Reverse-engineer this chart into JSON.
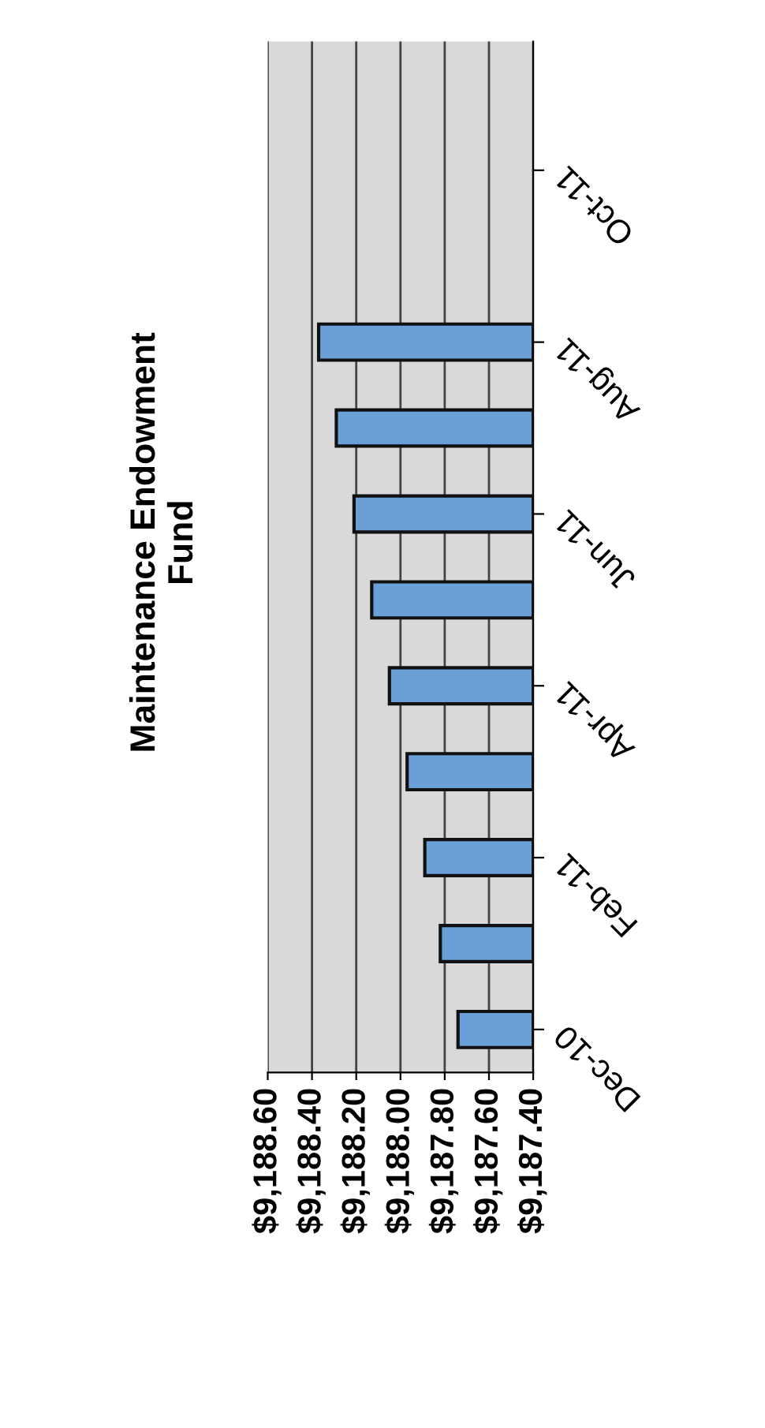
{
  "chart_data": {
    "type": "bar",
    "orientation": "horizontal",
    "title": "Maintenance Endowment\nFund",
    "categories": [
      null,
      "Oct-11",
      null,
      "Aug-11",
      null,
      "Jun-11",
      null,
      "Apr-11",
      null,
      "Feb-11",
      null,
      "Dec-10"
    ],
    "values": [
      null,
      null,
      null,
      9188.37,
      9188.29,
      9188.21,
      9188.13,
      9188.05,
      9187.97,
      9187.89,
      9187.82,
      9187.74
    ],
    "color": "#6a9fd8",
    "xlim": [
      9188.6,
      9187.4
    ],
    "xticks": [
      {
        "value": 9188.6,
        "label": "$9,188.60"
      },
      {
        "value": 9188.4,
        "label": "$9,188.40"
      },
      {
        "value": 9188.2,
        "label": "$9,188.20"
      },
      {
        "value": 9188.0,
        "label": "$9,188.00"
      },
      {
        "value": 9187.8,
        "label": "$9,187.80"
      },
      {
        "value": 9187.6,
        "label": "$9,187.60"
      },
      {
        "value": 9187.4,
        "label": "$9,187.40"
      }
    ],
    "grid": "x"
  }
}
